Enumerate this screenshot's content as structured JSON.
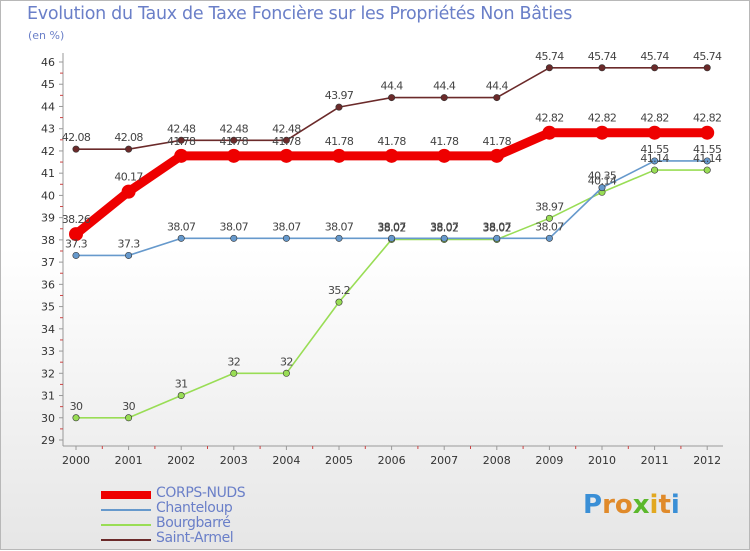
{
  "chart_data": {
    "type": "line",
    "title": "Evolution du Taux de Taxe Foncière sur les Propriétés Non Bâties",
    "unit_label": "(en %)",
    "xlabel": "",
    "ylabel": "",
    "ylim": [
      29,
      46
    ],
    "yticks": [
      "29",
      "30",
      "31",
      "32",
      "33",
      "34",
      "35",
      "36",
      "37",
      "38",
      "39",
      "40",
      "41",
      "42",
      "43",
      "44",
      "45",
      "46"
    ],
    "x": [
      "2000",
      "2001",
      "2002",
      "2003",
      "2004",
      "2005",
      "2006",
      "2007",
      "2008",
      "2009",
      "2010",
      "2011",
      "2012"
    ],
    "series": [
      {
        "name": "Saint-Armel",
        "color": "#6b2a2a",
        "values": [
          42.08,
          42.08,
          42.48,
          42.48,
          42.48,
          43.97,
          44.4,
          44.4,
          44.4,
          45.74,
          45.74,
          45.74,
          45.74
        ],
        "labels": [
          "42.08",
          "42.08",
          "42.48",
          "42.48",
          "42.48",
          "43.97",
          "44.4",
          "44.4",
          "44.4",
          "45.74",
          "45.74",
          "45.74",
          "45.74"
        ]
      },
      {
        "name": "Bourgbarré",
        "color": "#99dd55",
        "values": [
          30,
          30,
          31,
          32,
          32,
          35.2,
          38.02,
          38.02,
          38.02,
          38.97,
          40.14,
          41.14,
          41.14
        ],
        "labels": [
          "30",
          "30",
          "31",
          "32",
          "32",
          "35.2",
          "38.02",
          "38.02",
          "38.02",
          "38.97",
          "40.14",
          "41.14",
          "41.14"
        ]
      },
      {
        "name": "Chanteloup",
        "color": "#6699cc",
        "values": [
          37.3,
          37.3,
          38.07,
          38.07,
          38.07,
          38.07,
          38.07,
          38.07,
          38.07,
          38.07,
          40.35,
          41.55,
          41.55
        ],
        "labels": [
          "37.3",
          "37.3",
          "38.07",
          "38.07",
          "38.07",
          "38.07",
          "38.07",
          "38.07",
          "38.07",
          "38.07",
          "40.35",
          "41.55",
          "41.55"
        ]
      },
      {
        "name": "CORPS-NUDS",
        "color": "#ee0000",
        "values": [
          38.26,
          40.17,
          41.78,
          41.78,
          41.78,
          41.78,
          41.78,
          41.78,
          41.78,
          42.82,
          42.82,
          42.82,
          42.82
        ],
        "labels": [
          "38.26",
          "40.17",
          "41.78",
          "41.78",
          "41.78",
          "41.78",
          "41.78",
          "41.78",
          "41.78",
          "42.82",
          "42.82",
          "42.82",
          "42.82"
        ]
      }
    ],
    "legend": [
      "CORPS-NUDS",
      "Chanteloup",
      "Bourgbarré",
      "Saint-Armel"
    ],
    "legend_position": "bottom-left",
    "grid": false
  },
  "logo": {
    "letters": [
      "P",
      "r",
      "o",
      "x",
      "i",
      "t",
      "i"
    ],
    "colors": [
      "#3a8fd6",
      "#e08a2a",
      "#e08a2a",
      "#5cb82c",
      "#e2a81f",
      "#e08a2a",
      "#3a8fd6"
    ]
  }
}
